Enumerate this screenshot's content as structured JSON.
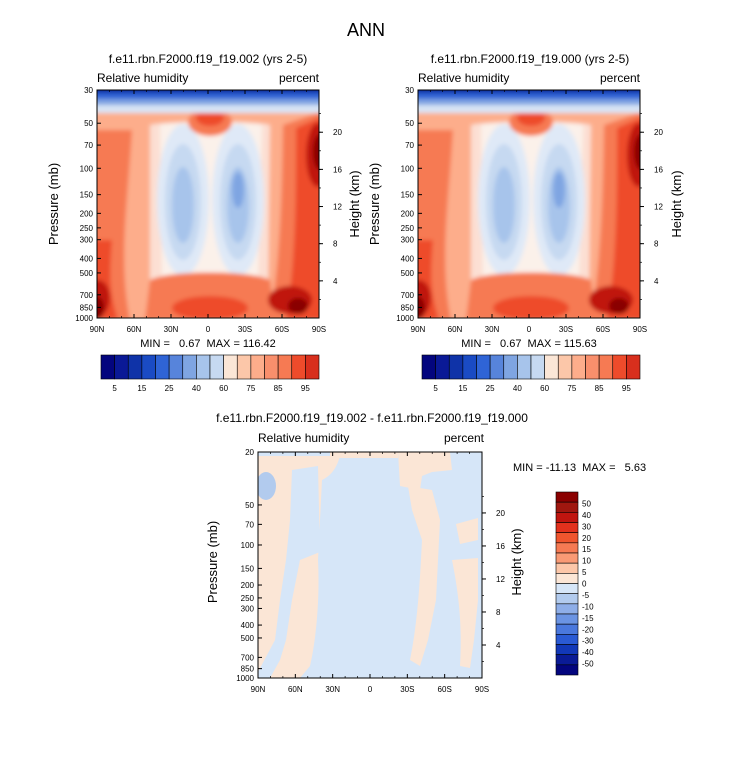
{
  "figure": {
    "title": "ANN"
  },
  "chart_data": [
    {
      "type": "heatmap",
      "title": "f.e11.rbn.F2000.f19_f19.002 (yrs 2-5)",
      "left_label": "Relative humidity",
      "right_label": "percent",
      "ylabel": "Pressure (mb)",
      "ylabel_right": "Height (km)",
      "x_ticks": [
        "90N",
        "60N",
        "30N",
        "0",
        "30S",
        "60S",
        "90S"
      ],
      "x_values": [
        90,
        60,
        30,
        0,
        -30,
        -60,
        -90
      ],
      "xlim": [
        90,
        -90
      ],
      "y_ticks": [
        "30",
        "50",
        "70",
        "100",
        "150",
        "200",
        "250",
        "300",
        "400",
        "500",
        "700",
        "850",
        "1000"
      ],
      "y_values": [
        30,
        50,
        70,
        100,
        150,
        200,
        250,
        300,
        400,
        500,
        700,
        850,
        1000
      ],
      "ylim": [
        1000,
        30
      ],
      "y_scale": "log",
      "height_ticks": [
        "20",
        "16",
        "12",
        "8",
        "4"
      ],
      "height_values": [
        20,
        16,
        12,
        8,
        4
      ],
      "min_max_text": "MIN =   0.67  MAX = 116.42",
      "min": 0.67,
      "max": 116.42,
      "colorbar": {
        "orientation": "horizontal",
        "levels": [
          5,
          10,
          15,
          20,
          25,
          30,
          40,
          50,
          60,
          70,
          75,
          80,
          85,
          90,
          95
        ],
        "labels": [
          "5",
          "15",
          "25",
          "40",
          "60",
          "75",
          "85",
          "95"
        ]
      }
    },
    {
      "type": "heatmap",
      "title": "f.e11.rbn.F2000.f19_f19.000 (yrs 2-5)",
      "left_label": "Relative humidity",
      "right_label": "percent",
      "ylabel": "Pressure (mb)",
      "ylabel_right": "Height (km)",
      "x_ticks": [
        "90N",
        "60N",
        "30N",
        "0",
        "30S",
        "60S",
        "90S"
      ],
      "x_values": [
        90,
        60,
        30,
        0,
        -30,
        -60,
        -90
      ],
      "xlim": [
        90,
        -90
      ],
      "y_ticks": [
        "30",
        "50",
        "70",
        "100",
        "150",
        "200",
        "250",
        "300",
        "400",
        "500",
        "700",
        "850",
        "1000"
      ],
      "y_values": [
        30,
        50,
        70,
        100,
        150,
        200,
        250,
        300,
        400,
        500,
        700,
        850,
        1000
      ],
      "ylim": [
        1000,
        30
      ],
      "y_scale": "log",
      "height_ticks": [
        "20",
        "16",
        "12",
        "8",
        "4"
      ],
      "height_values": [
        20,
        16,
        12,
        8,
        4
      ],
      "min_max_text": "MIN =   0.67  MAX = 115.63",
      "min": 0.67,
      "max": 115.63,
      "colorbar": {
        "orientation": "horizontal",
        "levels": [
          5,
          10,
          15,
          20,
          25,
          30,
          40,
          50,
          60,
          70,
          75,
          80,
          85,
          90,
          95
        ],
        "labels": [
          "5",
          "15",
          "25",
          "40",
          "60",
          "75",
          "85",
          "95"
        ]
      }
    },
    {
      "type": "heatmap",
      "title": "f.e11.rbn.F2000.f19_f19.002 - f.e11.rbn.F2000.f19_f19.000",
      "left_label": "Relative humidity",
      "right_label": "percent",
      "ylabel": "Pressure (mb)",
      "ylabel_right": "Height (km)",
      "x_ticks": [
        "90N",
        "60N",
        "30N",
        "0",
        "30S",
        "60S",
        "90S"
      ],
      "x_values": [
        90,
        60,
        30,
        0,
        -30,
        -60,
        -90
      ],
      "xlim": [
        90,
        -90
      ],
      "y_ticks": [
        "20",
        "50",
        "70",
        "100",
        "150",
        "200",
        "250",
        "300",
        "400",
        "500",
        "700",
        "850",
        "1000"
      ],
      "y_values": [
        20,
        50,
        70,
        100,
        150,
        200,
        250,
        300,
        400,
        500,
        700,
        850,
        1000
      ],
      "ylim": [
        1000,
        20
      ],
      "y_scale": "log",
      "height_ticks": [
        "20",
        "16",
        "12",
        "8",
        "4"
      ],
      "height_values": [
        20,
        16,
        12,
        8,
        4
      ],
      "min_max_text": "MIN = -11.13  MAX =   5.63",
      "min": -11.13,
      "max": 5.63,
      "colorbar": {
        "orientation": "vertical",
        "levels": [
          -50,
          -40,
          -30,
          -20,
          -15,
          -10,
          -5,
          0,
          5,
          10,
          15,
          20,
          30,
          40,
          50
        ],
        "labels": [
          "50",
          "40",
          "30",
          "20",
          "15",
          "10",
          "5",
          "0",
          "-5",
          "-10",
          "-15",
          "-20",
          "-30",
          "-40",
          "-50"
        ]
      }
    }
  ]
}
